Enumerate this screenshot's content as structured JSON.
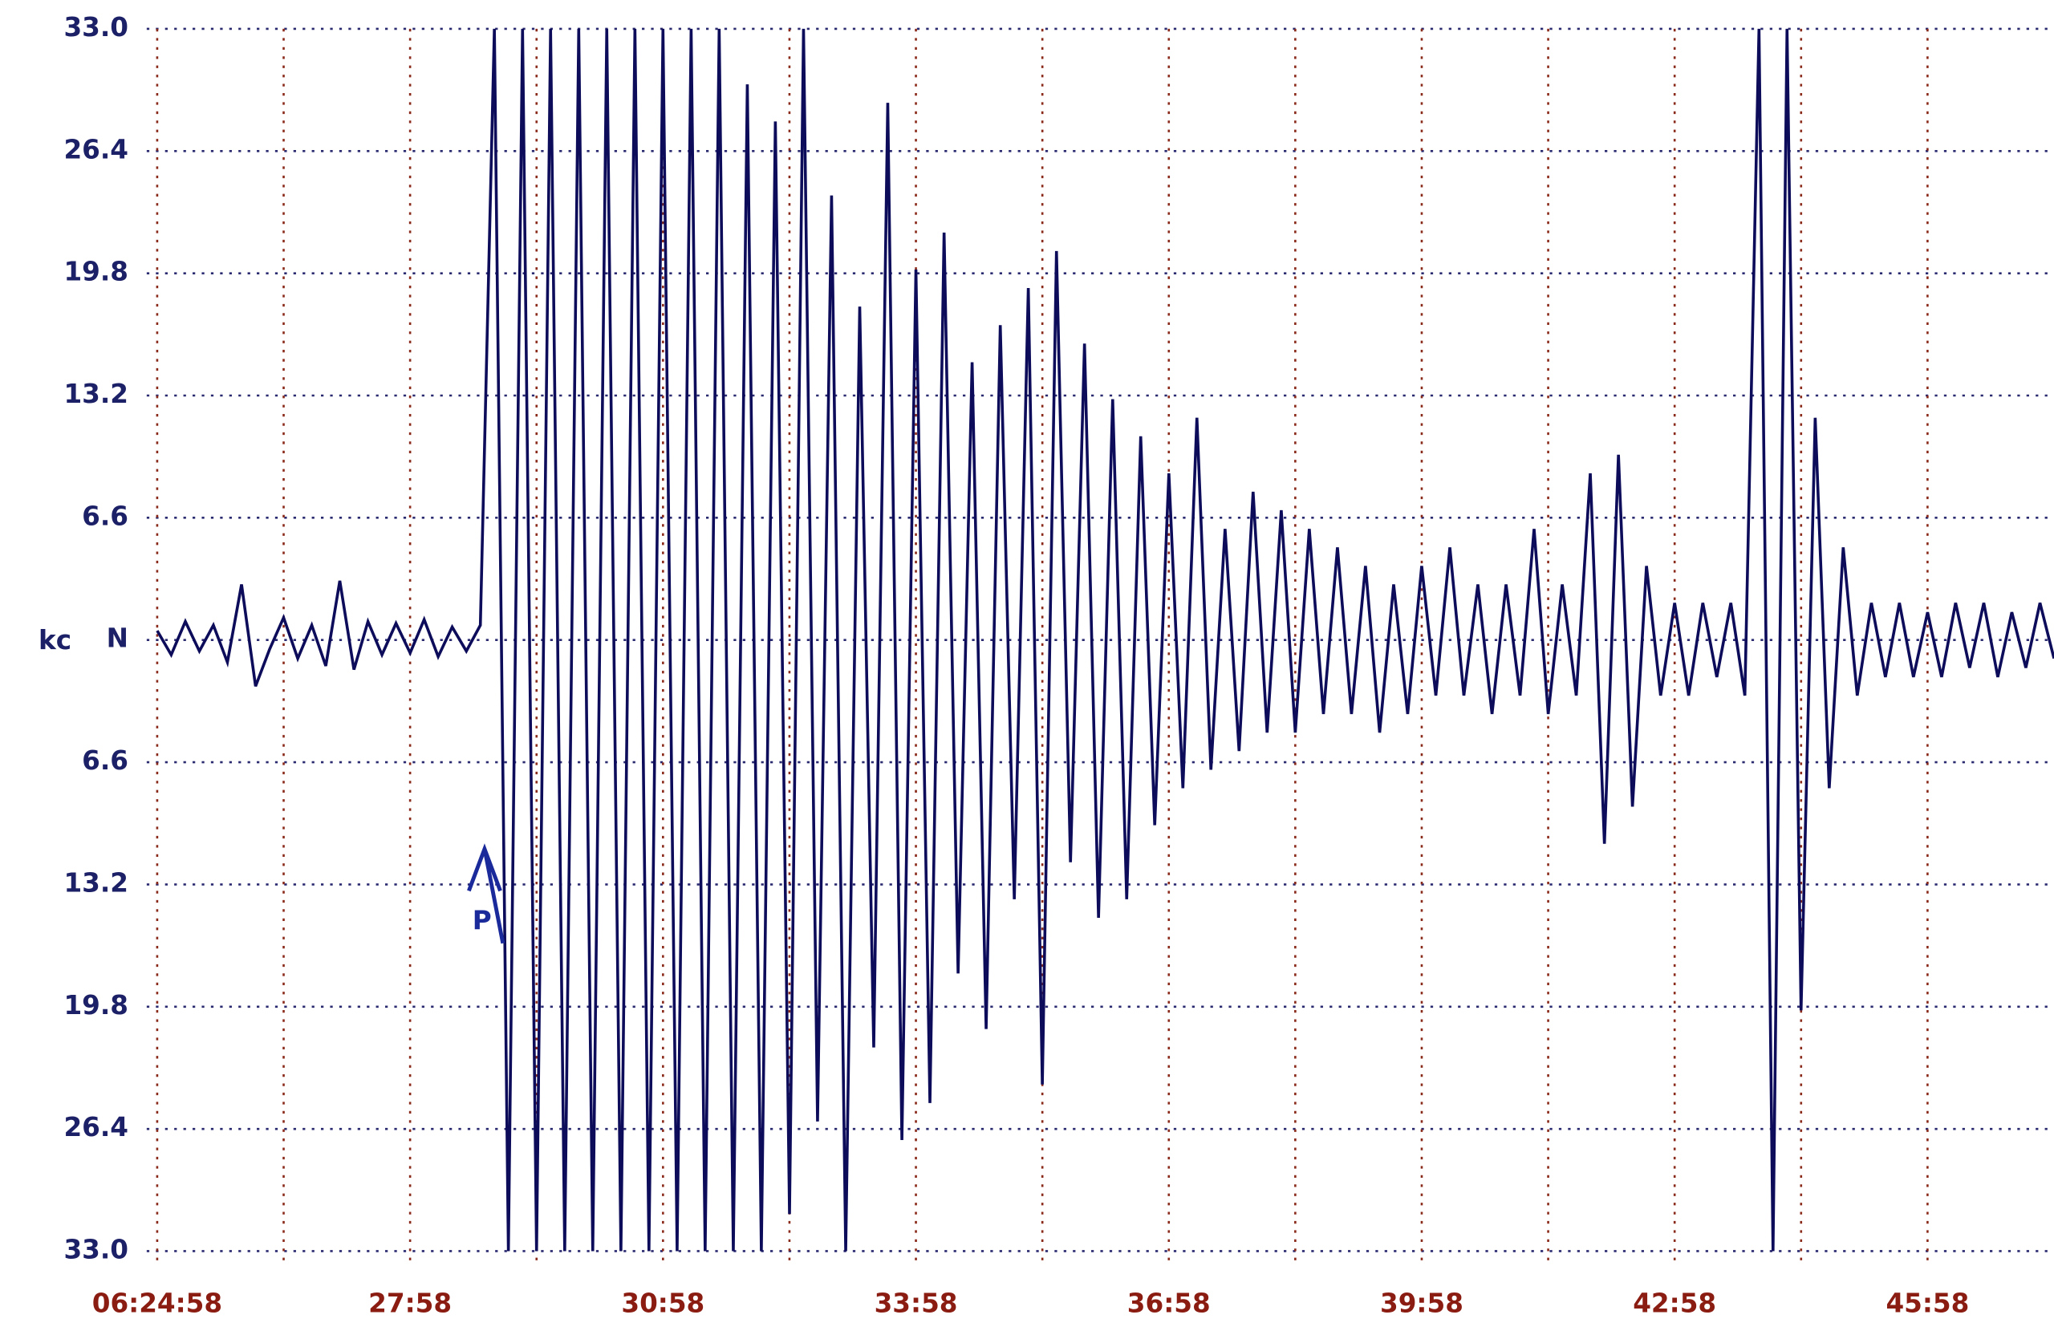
{
  "chart_data": {
    "type": "line",
    "y_label": "kc",
    "annotation": "P",
    "annotation_x": 233,
    "color": "#0c0c5a",
    "grid": true,
    "xlim": [
      0,
      1350
    ],
    "ylim": [
      -33,
      33
    ],
    "xticks": [
      {
        "value": 0,
        "label": "06:24:58"
      },
      {
        "value": 180,
        "label": "27:58"
      },
      {
        "value": 360,
        "label": "30:58"
      },
      {
        "value": 540,
        "label": "33:58"
      },
      {
        "value": 720,
        "label": "36:58"
      },
      {
        "value": 900,
        "label": "39:58"
      },
      {
        "value": 1080,
        "label": "42:58"
      },
      {
        "value": 1260,
        "label": "45:58"
      }
    ],
    "yticks": [
      {
        "value": 33,
        "label": "33.0"
      },
      26.4,
      19.8,
      13.2,
      6.6,
      {
        "value": 0,
        "label": "N"
      },
      {
        "value": -6.6,
        "label": "6.6"
      },
      {
        "value": -13.2,
        "label": "13.2"
      },
      {
        "value": -19.8,
        "label": "19.8"
      },
      {
        "value": -26.4,
        "label": "26.4"
      },
      {
        "value": -33,
        "label": "33.0"
      }
    ],
    "x": [
      0,
      10,
      20,
      30,
      40,
      50,
      60,
      70,
      80,
      90,
      100,
      110,
      120,
      130,
      140,
      150,
      160,
      170,
      180,
      190,
      200,
      210,
      220,
      230,
      240,
      250,
      260,
      270,
      280,
      290,
      300,
      310,
      320,
      330,
      340,
      350,
      360,
      370,
      380,
      390,
      400,
      410,
      420,
      430,
      440,
      450,
      460,
      470,
      480,
      490,
      500,
      510,
      520,
      530,
      540,
      550,
      560,
      570,
      580,
      590,
      600,
      610,
      620,
      630,
      640,
      650,
      660,
      670,
      680,
      690,
      700,
      710,
      720,
      730,
      740,
      750,
      760,
      770,
      780,
      790,
      800,
      810,
      820,
      830,
      840,
      850,
      860,
      870,
      880,
      890,
      900,
      910,
      920,
      930,
      940,
      950,
      960,
      970,
      980,
      990,
      1000,
      1010,
      1020,
      1030,
      1040,
      1050,
      1060,
      1070,
      1080,
      1090,
      1100,
      1110,
      1120,
      1130,
      1140,
      1150,
      1160,
      1170,
      1180,
      1190,
      1200,
      1210,
      1220,
      1230,
      1240,
      1250,
      1260,
      1270,
      1280,
      1290,
      1300,
      1310,
      1320,
      1330,
      1340,
      1350
    ],
    "values": [
      0.5,
      -0.8,
      1.0,
      -0.6,
      0.8,
      -1.2,
      3.0,
      -2.5,
      -0.5,
      1.2,
      -1.0,
      0.8,
      -1.4,
      3.2,
      -1.6,
      1.0,
      -0.8,
      0.9,
      -0.7,
      1.1,
      -0.9,
      0.7,
      -0.6,
      0.8,
      33,
      -33,
      33,
      -33,
      33,
      -33,
      33,
      -33,
      33,
      -33,
      33,
      -33,
      33,
      -33,
      33,
      -33,
      33,
      -33,
      30,
      -33,
      28,
      -31,
      33,
      -26,
      24,
      -33,
      18,
      -22,
      29,
      -27,
      20,
      -25,
      22,
      -18,
      15,
      -21,
      17,
      -14,
      19,
      -24,
      21,
      -12,
      16,
      -15,
      13,
      -14,
      11,
      -10,
      9,
      -8,
      12,
      -7,
      6,
      -6,
      8,
      -5,
      7,
      -5,
      6,
      -4,
      5,
      -4,
      4,
      -5,
      3,
      -4,
      4,
      -3,
      5,
      -3,
      3,
      -4,
      3,
      -3,
      6,
      -4,
      3,
      -3,
      9,
      -11,
      10,
      -9,
      4,
      -3,
      2,
      -3,
      2,
      -2,
      2,
      -3,
      33,
      -33,
      33,
      -20,
      12,
      -8,
      5,
      -3,
      2,
      -2,
      2,
      -2,
      1.5,
      -2,
      2,
      -1.5,
      2,
      -2,
      1.5,
      -1.5,
      2,
      -1
    ]
  }
}
